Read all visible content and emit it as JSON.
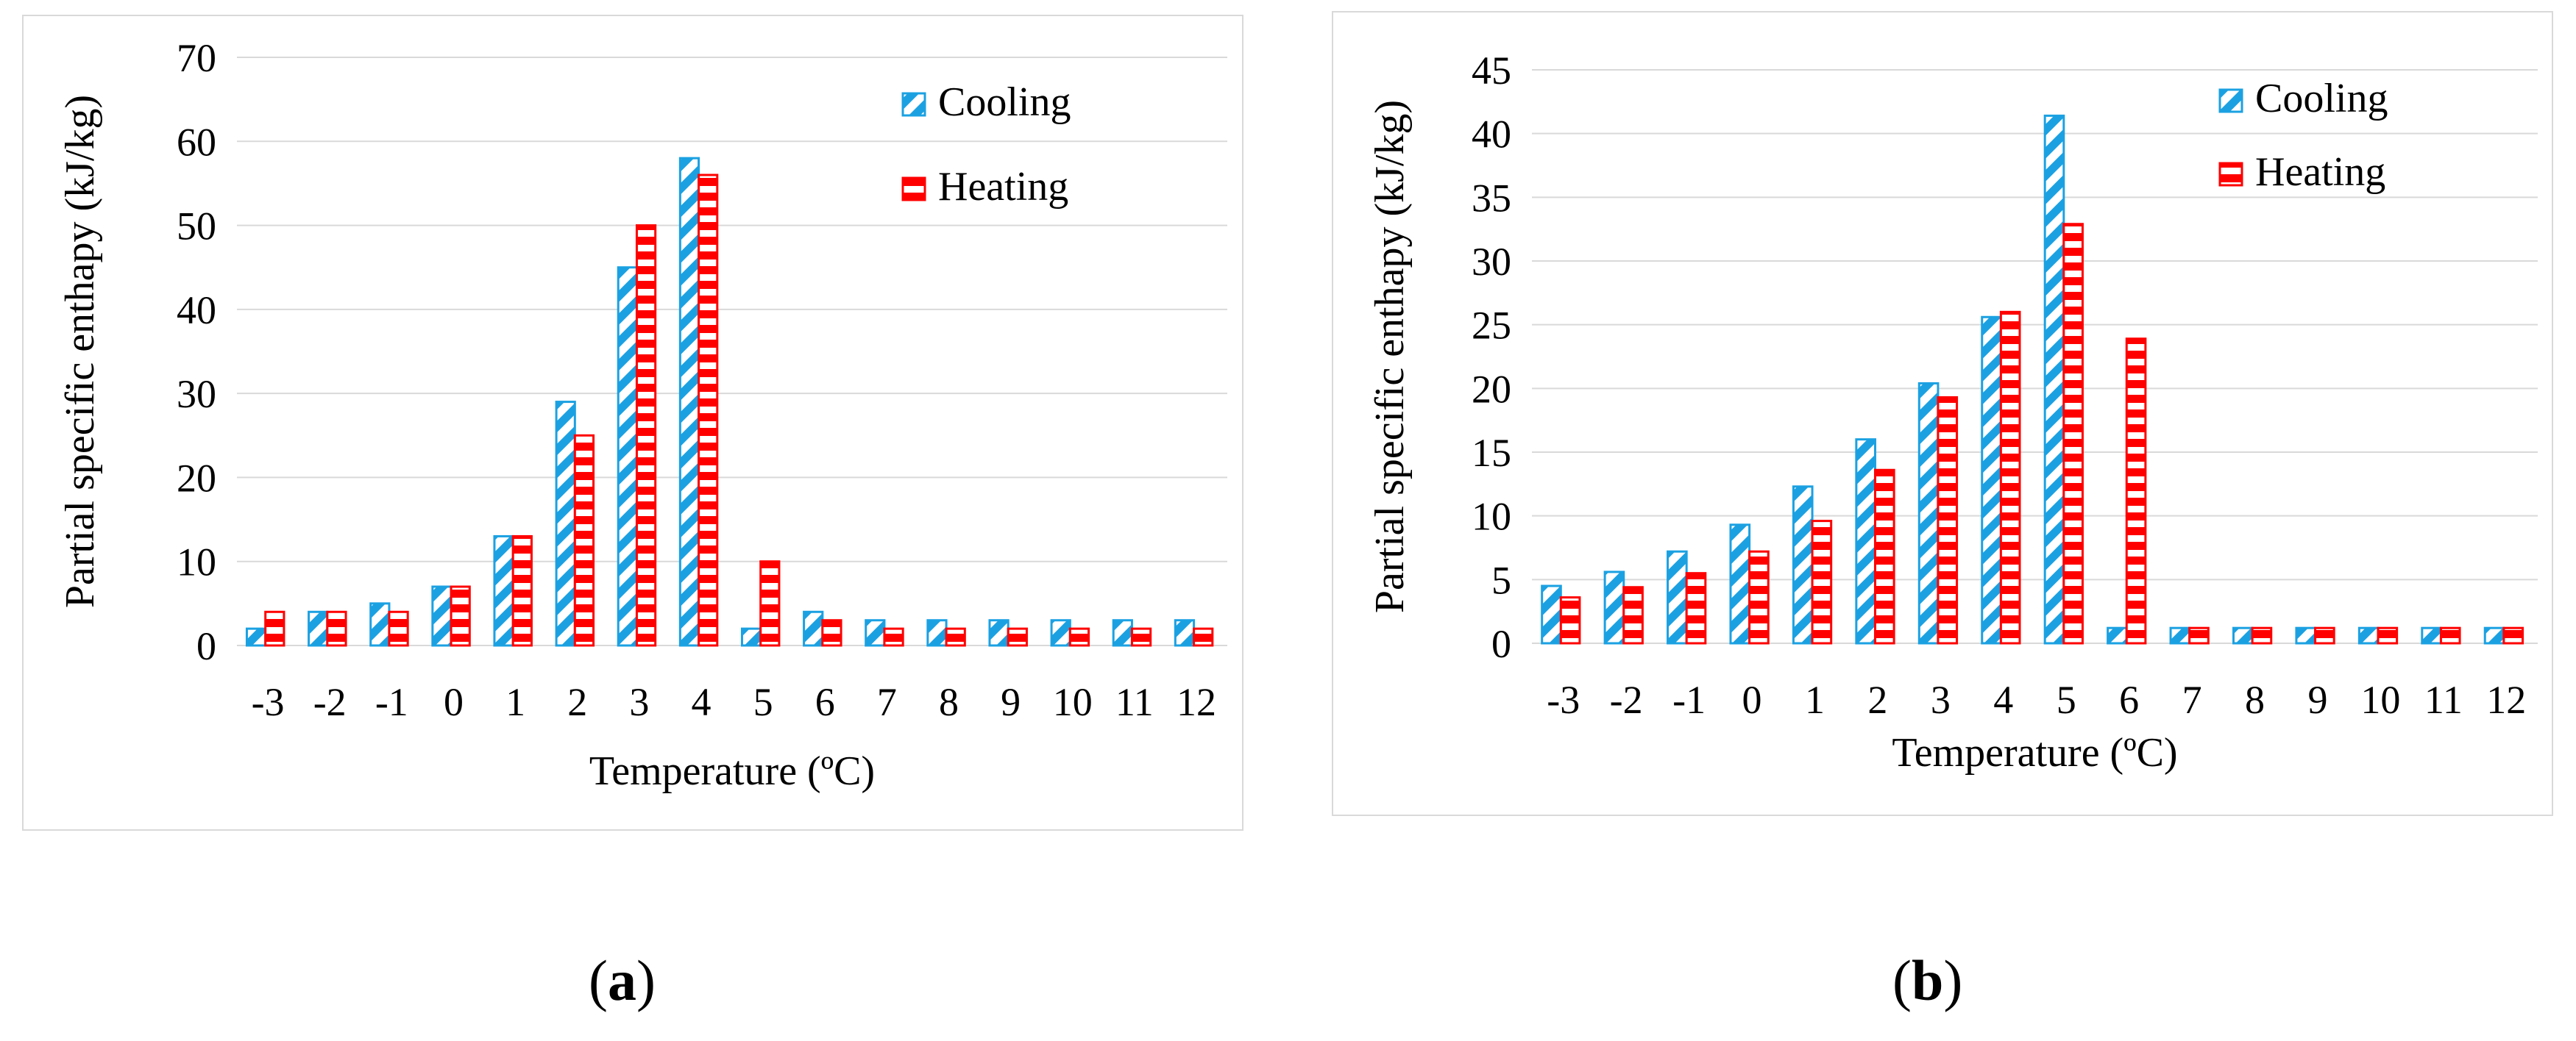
{
  "chart_data": [
    {
      "type": "bar",
      "panel_label": "a",
      "categories": [
        "-3",
        "-2",
        "-1",
        "0",
        "1",
        "2",
        "3",
        "4",
        "5",
        "6",
        "7",
        "8",
        "9",
        "10",
        "11",
        "12"
      ],
      "series": [
        {
          "name": "Cooling",
          "color": "#1ba1e2",
          "pattern": "diagonal",
          "values": [
            2,
            4,
            5,
            7,
            13,
            29,
            45,
            58,
            2,
            4,
            3,
            3,
            3,
            3,
            3,
            3
          ]
        },
        {
          "name": "Heating",
          "color": "#ff0000",
          "pattern": "horizontal",
          "values": [
            4,
            4,
            4,
            7,
            13,
            25,
            50,
            56,
            10,
            3,
            2,
            2,
            2,
            2,
            2,
            2
          ]
        }
      ],
      "title": "",
      "xlabel": "Temperature (ºC)",
      "ylabel": "Partial specific enthapy (kJ/kg)",
      "ylim": [
        0,
        70
      ],
      "yticks": [
        "0",
        "10",
        "20",
        "30",
        "40",
        "50",
        "60",
        "70"
      ],
      "grid": true,
      "legend": "top-right"
    },
    {
      "type": "bar",
      "panel_label": "b",
      "categories": [
        "-3",
        "-2",
        "-1",
        "0",
        "1",
        "2",
        "3",
        "4",
        "5",
        "6",
        "7",
        "8",
        "9",
        "10",
        "11",
        "12"
      ],
      "series": [
        {
          "name": "Cooling",
          "color": "#1ba1e2",
          "pattern": "diagonal",
          "values": [
            4.5,
            5.6,
            7.2,
            9.3,
            12.3,
            16,
            20.4,
            25.6,
            41.4,
            1.2,
            1.2,
            1.2,
            1.2,
            1.2,
            1.2,
            1.2
          ]
        },
        {
          "name": "Heating",
          "color": "#ff0000",
          "pattern": "horizontal",
          "values": [
            3.6,
            4.4,
            5.5,
            7.2,
            9.6,
            13.6,
            19.3,
            26,
            32.9,
            23.9,
            1.2,
            1.2,
            1.2,
            1.2,
            1.2,
            1.2
          ]
        }
      ],
      "title": "",
      "xlabel": "Temperature (ºC)",
      "ylabel": "Partial specific enthapy (kJ/kg)",
      "ylim": [
        0,
        45
      ],
      "yticks": [
        "0",
        "5",
        "10",
        "15",
        "20",
        "25",
        "30",
        "35",
        "40",
        "45"
      ],
      "grid": true,
      "legend": "top-right"
    }
  ],
  "labels": {
    "a_open": "(",
    "a_letter": "a",
    "a_close": ")",
    "b_open": "(",
    "b_letter": "b",
    "b_close": ")"
  }
}
